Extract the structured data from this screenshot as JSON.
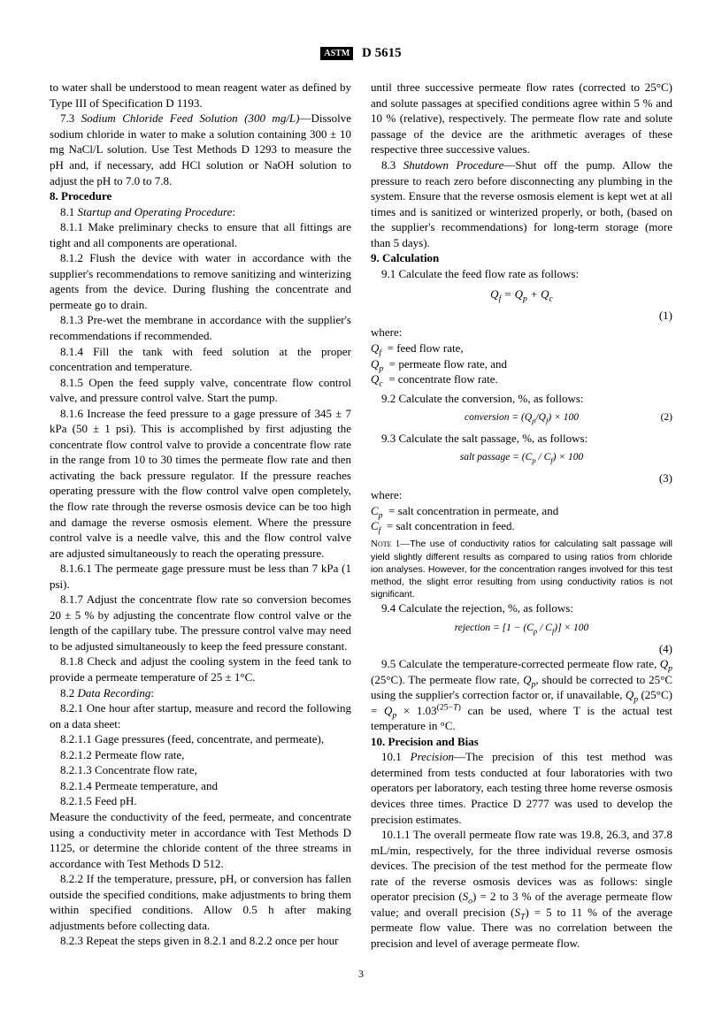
{
  "header": {
    "logo": "ASTM",
    "code": "D 5615"
  },
  "left": {
    "intro": "to water shall be understood to mean reagent water as defined by Type III of Specification D 1193.",
    "p73a": "7.3 ",
    "p73title": "Sodium Chloride Feed Solution (300 mg/L)",
    "p73b": "—Dissolve sodium chloride in water to make a solution containing 300 ± 10 mg NaCl/L solution. Use Test Methods D 1293 to measure the pH and, if necessary, add HCl solution or NaOH solution to adjust the pH to 7.0 to 7.8.",
    "s8": "8. Procedure",
    "p81t": "Startup and Operating Procedure",
    "p811": "8.1.1 Make preliminary checks to ensure that all fittings are tight and all components are operational.",
    "p812": "8.1.2 Flush the device with water in accordance with the supplier's recommendations to remove sanitizing and winterizing agents from the device. During flushing the concentrate and permeate go to drain.",
    "p813": "8.1.3 Pre-wet the membrane in accordance with the supplier's recommendations if recommended.",
    "p814": "8.1.4 Fill the tank with feed solution at the proper concentration and temperature.",
    "p815": "8.1.5 Open the feed supply valve, concentrate flow control valve, and pressure control valve. Start the pump.",
    "p816": "8.1.6 Increase the feed pressure to a gage pressure of 345 ± 7 kPa (50 ± 1 psi). This is accomplished by first adjusting the concentrate flow control valve to provide a concentrate flow rate in the range from 10 to 30 times the permeate flow rate and then activating the back pressure regulator. If the pressure reaches operating pressure with the flow control valve open completely, the flow rate through the reverse osmosis device can be too high and damage the reverse osmosis element. Where the pressure control valve is a needle valve, this and the flow control valve are adjusted simultaneously to reach the operating pressure.",
    "p8161": "8.1.6.1 The permeate gage pressure must be less than 7 kPa (1 psi).",
    "p817": "8.1.7 Adjust the concentrate flow rate so conversion becomes 20 ± 5 % by adjusting the concentrate flow control valve or the length of the capillary tube. The pressure control valve may need to be adjusted simultaneously to keep the feed pressure constant.",
    "p818": "8.1.8 Check and adjust the cooling system in the feed tank to provide a permeate temperature of 25 ± 1°C.",
    "p82t": "Data Recording",
    "p821": "8.2.1 One hour after startup, measure and record the following on a data sheet:",
    "p8211": "8.2.1.1 Gage pressures (feed, concentrate, and permeate),",
    "p8212": "8.2.1.2 Permeate flow rate,",
    "p8213": "8.2.1.3 Concentrate flow rate,",
    "p8214": "8.2.1.4 Permeate temperature, and",
    "p8215": "8.2.1.5 Feed pH.",
    "p82cond": "Measure the conductivity of the feed, permeate, and concentrate using a conductivity meter in accordance with Test Methods D 1125, or determine the chloride content of the three streams in accordance with Test Methods D 512.",
    "p822": "8.2.2 If the temperature, pressure, pH, or conversion has fallen outside the specified conditions, make adjustments to bring them within specified conditions. Allow 0.5 h after making adjustments before collecting data.",
    "p823": "8.2.3 Repeat the steps given in 8.2.1 and 8.2.2 once per hour"
  },
  "right": {
    "cont": "until three successive permeate flow rates (corrected to 25°C) and solute passages at specified conditions agree within 5 % and 10 % (relative), respectively. The permeate flow rate and solute passage of the device are the arithmetic averages of these respective three successive values.",
    "p83a": "8.3 ",
    "p83t": "Shutdown Procedure",
    "p83b": "—Shut off the pump. Allow the pressure to reach zero before disconnecting any plumbing in the system. Ensure that the reverse osmosis element is kept wet at all times and is sanitized or winterized properly, or both, (based on the supplier's recommendations) for long-term storage (more than 5 days).",
    "s9": "9. Calculation",
    "p91": "9.1 Calculate the feed flow rate as follows:",
    "eq1": "Q_f = Q_p + Q_c",
    "eq1n": "(1)",
    "where": "where:",
    "w1a": "Q_f",
    "w1b": "= feed flow rate,",
    "w2a": "Q_p",
    "w2b": "= permeate flow rate, and",
    "w3a": "Q_c",
    "w3b": "= concentrate flow rate.",
    "p92": "9.2 Calculate the conversion, %, as follows:",
    "eq2": "conversion = (Q_p/Q_f) × 100",
    "eq2n": "(2)",
    "p93": "9.3 Calculate the salt passage, %, as follows:",
    "eq3": "salt passage = (C_p / C_f) × 100",
    "eq3n": "(3)",
    "where2": "where:",
    "w4a": "C_p",
    "w4b": "= salt concentration in permeate, and",
    "w5a": "C_f",
    "w5b": "= salt concentration in feed.",
    "note1label": "Note 1—",
    "note1": "The use of conductivity ratios for calculating salt passage will yield slightly different results as compared to using ratios from chloride ion analyses. However, for the concentration ranges involved for this test method, the slight error resulting from using conductivity ratios is not significant.",
    "p94": "9.4 Calculate the rejection, %, as follows:",
    "eq4": "rejection = [1 − (C_p / C_f)] × 100",
    "eq4n": "(4)",
    "p95a": "9.5 Calculate the temperature-corrected permeate flow rate, ",
    "p95b": " (25°C). The permeate flow rate, ",
    "p95c": ", should be corrected to 25°C using the supplier's correction factor or, if unavailable, ",
    "p95d": " can be used, where T is the actual test temperature in °C.",
    "s10": "10. Precision and Bias",
    "p101a": "10.1 ",
    "p101t": "Precision",
    "p101b": "—The precision of this test method was determined from tests conducted at four laboratories with two operators per laboratory, each testing three home reverse osmosis devices three times. Practice D 2777 was used to develop the precision estimates.",
    "p1011": "10.1.1 The overall permeate flow rate was 19.8, 26.3, and 37.8 mL/min, respectively, for the three individual reverse osmosis devices. The precision of the test method for the permeate flow rate of the reverse osmosis devices was as follows: single operator precision (S_o) = 2 to 3 % of the average permeate flow value; and overall precision (S_T) = 5 to 11 % of the average permeate flow value. There was no correlation between the precision and level of average permeate flow."
  },
  "pagenum": "3"
}
